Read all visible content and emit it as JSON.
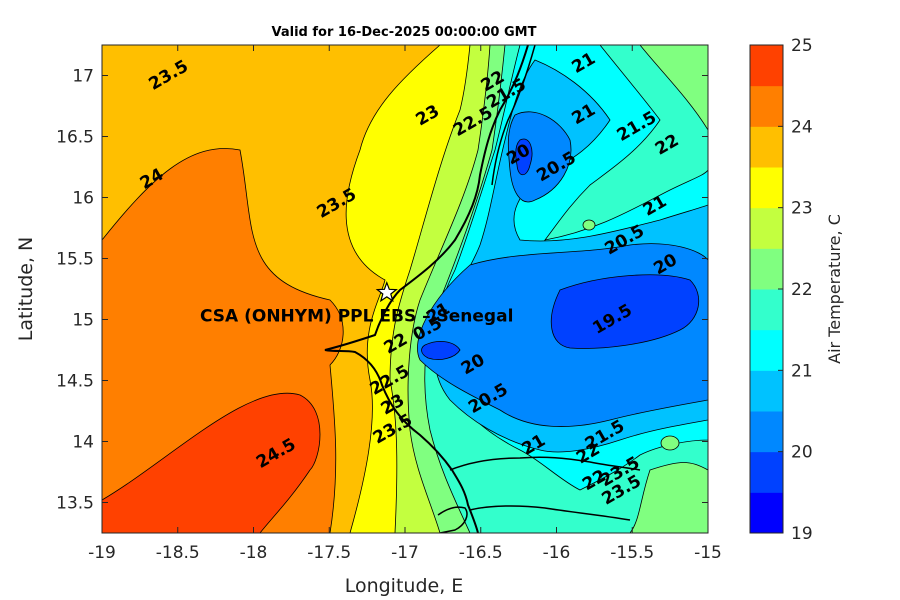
{
  "chart_data": {
    "type": "heatmap",
    "title": "Valid for 16-Dec-2025 00:00:00 GMT",
    "xlabel": "Longitude, E",
    "ylabel": "Latitude, N",
    "xlim": [
      -19,
      -15
    ],
    "ylim": [
      13.25,
      17.25
    ],
    "xticks": [
      -19,
      -18.5,
      -18,
      -17.5,
      -17,
      -16.5,
      -16,
      -15.5,
      -15
    ],
    "yticks": [
      13.5,
      14,
      14.5,
      15,
      15.5,
      16,
      16.5,
      17
    ],
    "colorbar": {
      "label": "Air Temperature, C",
      "min": 19,
      "max": 25,
      "ticks": [
        19,
        20,
        21,
        22,
        23,
        24,
        25
      ],
      "levels": [
        19,
        19.5,
        20,
        20.5,
        21,
        21.5,
        22,
        22.5,
        23,
        23.5,
        24,
        24.5,
        25
      ],
      "colors": [
        "#0000ff",
        "#0041ff",
        "#0088ff",
        "#00c2ff",
        "#00ffff",
        "#33ffcc",
        "#80ff80",
        "#c3ff3f",
        "#ffff00",
        "#ffbf00",
        "#ff7f00",
        "#ff4100"
      ]
    },
    "station": {
      "label": "CSA (ONHYM) PPL EBS  – Senegal",
      "lon": -17.12,
      "lat": 15.22
    },
    "contour_labels": [
      {
        "text": "23.5",
        "lon": -18.56,
        "lat": 17.0
      },
      {
        "text": "24",
        "lon": -18.67,
        "lat": 16.15
      },
      {
        "text": "23.5",
        "lon": -17.45,
        "lat": 15.95
      },
      {
        "text": "23",
        "lon": -16.85,
        "lat": 16.67
      },
      {
        "text": "22.5",
        "lon": -16.55,
        "lat": 16.62
      },
      {
        "text": "22",
        "lon": -16.42,
        "lat": 16.95
      },
      {
        "text": "21.5",
        "lon": -16.33,
        "lat": 16.85
      },
      {
        "text": "21",
        "lon": -15.82,
        "lat": 17.1
      },
      {
        "text": "21",
        "lon": -15.82,
        "lat": 16.68
      },
      {
        "text": "21.5",
        "lon": -15.47,
        "lat": 16.58
      },
      {
        "text": "22",
        "lon": -15.27,
        "lat": 16.43
      },
      {
        "text": "20",
        "lon": -16.25,
        "lat": 16.35
      },
      {
        "text": "20.5",
        "lon": -16.0,
        "lat": 16.25
      },
      {
        "text": "21",
        "lon": -15.35,
        "lat": 15.93
      },
      {
        "text": "20.5",
        "lon": -15.55,
        "lat": 15.65
      },
      {
        "text": "20",
        "lon": -15.28,
        "lat": 15.45
      },
      {
        "text": "19.5",
        "lon": -15.63,
        "lat": 15.0
      },
      {
        "text": "20",
        "lon": -16.55,
        "lat": 14.63
      },
      {
        "text": "20.5",
        "lon": -16.45,
        "lat": 14.35
      },
      {
        "text": "0.5",
        "lon": -16.85,
        "lat": 14.92
      },
      {
        "text": "21",
        "lon": -16.78,
        "lat": 15.05
      },
      {
        "text": "21",
        "lon": -16.15,
        "lat": 13.97
      },
      {
        "text": "21.5",
        "lon": -15.68,
        "lat": 14.05
      },
      {
        "text": "22",
        "lon": -15.79,
        "lat": 13.9
      },
      {
        "text": "22",
        "lon": -15.75,
        "lat": 13.68
      },
      {
        "text": "23.5",
        "lon": -15.58,
        "lat": 13.75
      },
      {
        "text": "23.5",
        "lon": -15.57,
        "lat": 13.6
      },
      {
        "text": "22",
        "lon": -17.06,
        "lat": 14.8
      },
      {
        "text": "22.5",
        "lon": -17.1,
        "lat": 14.5
      },
      {
        "text": "23",
        "lon": -17.08,
        "lat": 14.3
      },
      {
        "text": "23.5",
        "lon": -17.08,
        "lat": 14.1
      },
      {
        "text": "24.5",
        "lon": -17.85,
        "lat": 13.9
      }
    ]
  }
}
